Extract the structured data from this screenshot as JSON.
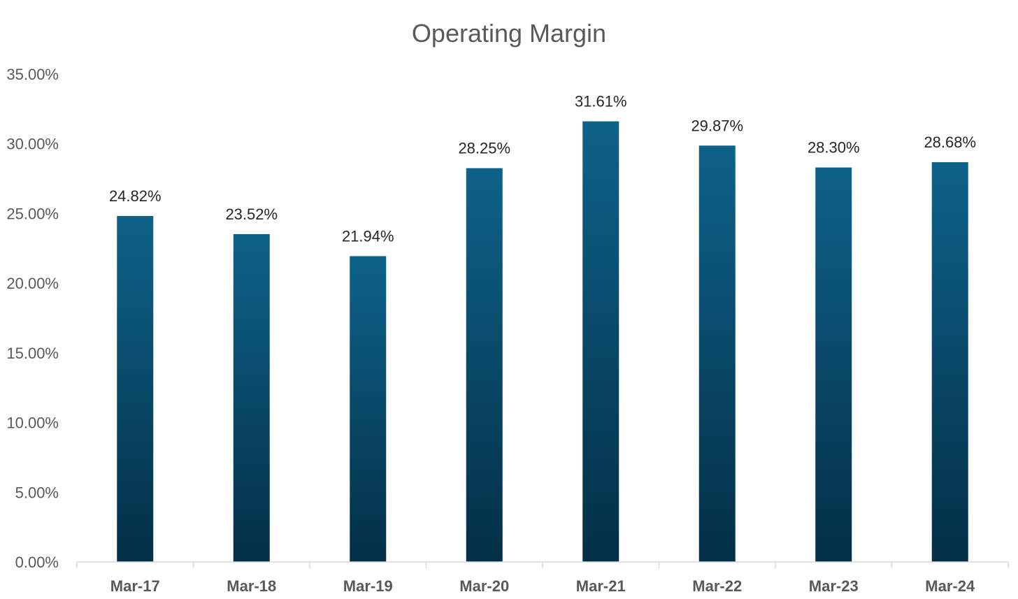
{
  "chart_data": {
    "type": "bar",
    "title": "Operating Margin",
    "xlabel": "",
    "ylabel": "",
    "categories": [
      "Mar-17",
      "Mar-18",
      "Mar-19",
      "Mar-20",
      "Mar-21",
      "Mar-22",
      "Mar-23",
      "Mar-24"
    ],
    "values": [
      24.82,
      23.52,
      21.94,
      28.25,
      31.61,
      29.87,
      28.3,
      28.68
    ],
    "value_labels": [
      "24.82%",
      "23.52%",
      "21.94%",
      "28.25%",
      "31.61%",
      "29.87%",
      "28.30%",
      "28.68%"
    ],
    "ylim": [
      0,
      35
    ],
    "yticks": [
      0,
      5,
      10,
      15,
      20,
      25,
      30,
      35
    ],
    "ytick_labels": [
      "0.00%",
      "5.00%",
      "10.00%",
      "15.00%",
      "20.00%",
      "25.00%",
      "30.00%",
      "35.00%"
    ],
    "grid": false,
    "legend": "none",
    "colors": {
      "bar_top": "#0e6289",
      "bar_bottom": "#032f47",
      "axis": "#d9d9d9",
      "text": "#595959",
      "data_label": "#262626"
    }
  }
}
